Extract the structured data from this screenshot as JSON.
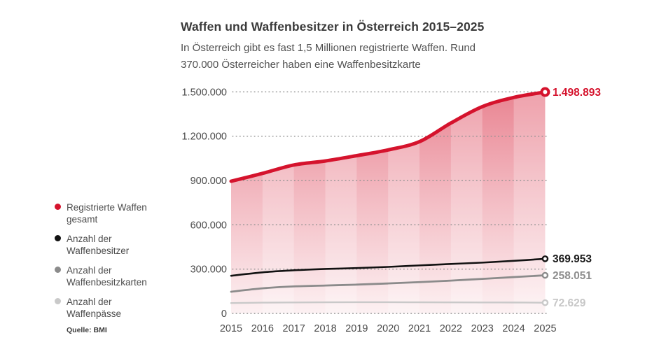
{
  "header": {
    "title": "Waffen und Waffenbesitzer in Österreich 2015–2025",
    "subtitle": "In Österreich gibt es fast 1,5 Millionen registrierte Waffen. Rund\n370.000 Österreicher haben eine Waffenbesitzkarte"
  },
  "legend": {
    "items": [
      {
        "label": "Registrierte Waffen\ngesamt",
        "color": "#d5132d"
      },
      {
        "label": "Anzahl der\nWaffenbesitzer",
        "color": "#121212"
      },
      {
        "label": "Anzahl der\nWaffenbesitzkarten",
        "color": "#8b8b8b"
      },
      {
        "label": "Anzahl der\nWaffenpässe",
        "color": "#c9c9c9"
      }
    ]
  },
  "footer": {
    "source": "Quelle: BMI"
  },
  "chart_data": {
    "type": "area",
    "title": "Waffen und Waffenbesitzer in Österreich 2015–2025",
    "x": [
      2015,
      2016,
      2017,
      2018,
      2019,
      2020,
      2021,
      2022,
      2023,
      2024,
      2025
    ],
    "series": [
      {
        "name": "Registrierte Waffen gesamt",
        "color": "#d5132d",
        "label_color": "#d5132d",
        "end_label": "1.498.893",
        "area": true,
        "line_width": 5,
        "values": [
          895000,
          948000,
          1005000,
          1032000,
          1068000,
          1107000,
          1163000,
          1289000,
          1400000,
          1462000,
          1498893
        ]
      },
      {
        "name": "Anzahl der Waffenbesitzer",
        "color": "#121212",
        "label_color": "#1a1a1a",
        "end_label": "369.953",
        "area": false,
        "line_width": 2.6,
        "values": [
          255000,
          278000,
          292000,
          301000,
          307000,
          315000,
          325000,
          335000,
          344000,
          356000,
          369953
        ]
      },
      {
        "name": "Anzahl der Waffenbesitzkarten",
        "color": "#8b8b8b",
        "label_color": "#8e8e8e",
        "end_label": "258.051",
        "area": false,
        "line_width": 2.8,
        "values": [
          147000,
          170000,
          183000,
          189000,
          195000,
          203000,
          212000,
          222000,
          234000,
          246000,
          258051
        ]
      },
      {
        "name": "Anzahl der Waffenpässe",
        "color": "#c9c9c9",
        "label_color": "#c7c7c7",
        "end_label": "72.629",
        "area": false,
        "line_width": 2.4,
        "values": [
          70000,
          73000,
          74500,
          75500,
          76000,
          76000,
          75500,
          75000,
          74500,
          74000,
          72629
        ]
      }
    ],
    "y_ticks": [
      {
        "value": 0,
        "label": "0"
      },
      {
        "value": 300000,
        "label": "300.000"
      },
      {
        "value": 600000,
        "label": "600.000"
      },
      {
        "value": 900000,
        "label": "900.000"
      },
      {
        "value": 1200000,
        "label": "1.200.000"
      },
      {
        "value": 1500000,
        "label": "1.500.000"
      }
    ],
    "ylim": [
      0,
      1500000
    ],
    "grid": "horizontal-dotted",
    "legend_position": "left",
    "grid_color": "#8f8f8f",
    "axis_text_color": "#4a4a4a",
    "band_overlay_color": "#ffffff"
  }
}
